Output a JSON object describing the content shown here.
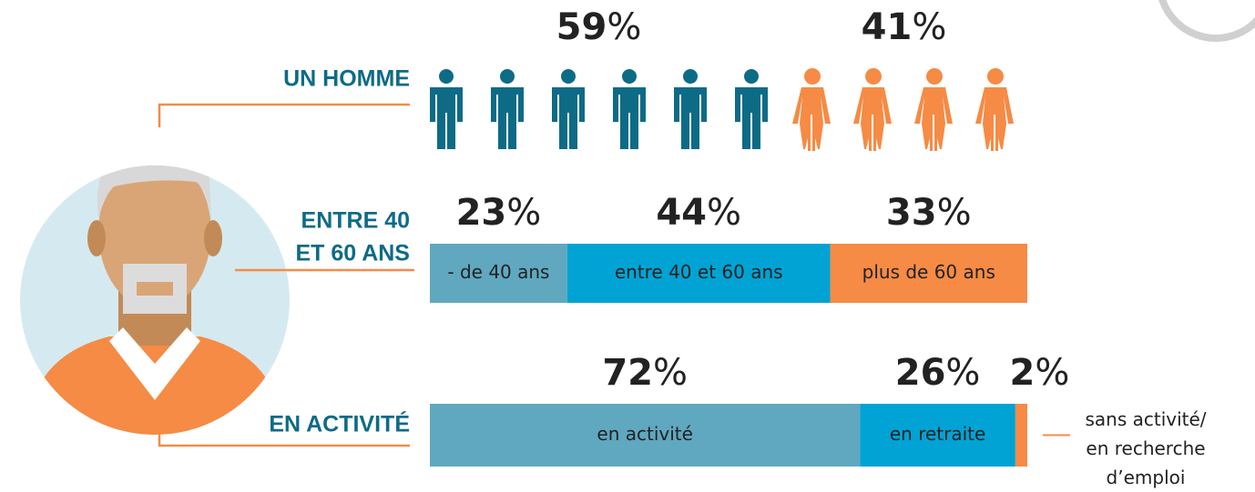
{
  "chart_data": [
    {
      "type": "pictogram",
      "title": [
        "UN HOMME"
      ],
      "values": [
        59,
        41
      ],
      "value_labels": [
        "59%",
        "41%"
      ],
      "colors": [
        "#0e6b86",
        "#f58b45"
      ]
    },
    {
      "type": "stacked-bar",
      "title": [
        "ENTRE 40",
        "ET 60 ANS"
      ],
      "categories": [
        "- de 40 ans",
        "entre 40 et 60 ans",
        "plus de 60 ans"
      ],
      "values": [
        23,
        44,
        33
      ],
      "value_labels": [
        "23%",
        "44%",
        "33%"
      ],
      "colors": [
        "#5fa8c0",
        "#00a3d4",
        "#f58b45"
      ]
    },
    {
      "type": "stacked-bar",
      "title": [
        "EN ACTIVITÉ"
      ],
      "categories": [
        "en activité",
        "en retraite",
        "sans activité/\nen recherche\nd’emploi"
      ],
      "values": [
        72,
        26,
        2
      ],
      "value_labels": [
        "72%",
        "26%",
        "2%"
      ],
      "colors": [
        "#5fa8c0",
        "#00a3d4",
        "#f58b45"
      ]
    }
  ]
}
